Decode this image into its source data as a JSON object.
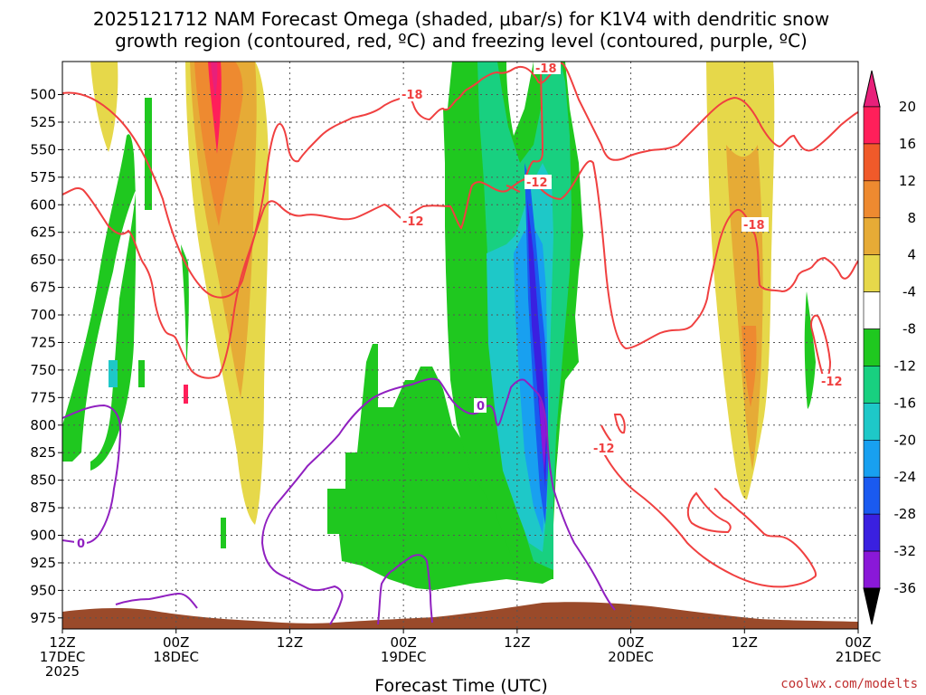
{
  "title_line1": "2025121712 NAM Forecast Omega (shaded, μbar/s) for K1V4 with dendritic snow",
  "title_line2": "growth region (contoured, red, ºC) and freezing level (contoured, purple, ºC)",
  "credit": "coolwx.com/modelts",
  "colors": {
    "temp_contour": "#f04040",
    "freezing_contour": "#9020c0",
    "terrain": "#9a4a2a",
    "grid": "#555555"
  },
  "chart_data": {
    "type": "heatmap",
    "xlabel": "Forecast Time (UTC)",
    "x_ticks": [
      {
        "hour": 0,
        "lines": [
          "12Z",
          "17DEC",
          "2025"
        ]
      },
      {
        "hour": 12,
        "lines": [
          "00Z",
          "18DEC"
        ]
      },
      {
        "hour": 24,
        "lines": [
          "12Z"
        ]
      },
      {
        "hour": 36,
        "lines": [
          "00Z",
          "19DEC"
        ]
      },
      {
        "hour": 48,
        "lines": [
          "12Z"
        ]
      },
      {
        "hour": 60,
        "lines": [
          "00Z",
          "20DEC"
        ]
      },
      {
        "hour": 72,
        "lines": [
          "12Z"
        ]
      },
      {
        "hour": 84,
        "lines": [
          "00Z",
          "21DEC"
        ]
      }
    ],
    "xlim_hours": [
      0,
      84
    ],
    "y_ticks": [
      500,
      525,
      550,
      575,
      600,
      625,
      650,
      675,
      700,
      725,
      750,
      775,
      800,
      825,
      850,
      875,
      900,
      925,
      950,
      975
    ],
    "ylim_hpa": [
      470,
      985
    ],
    "y_reversed": true,
    "grid": true,
    "colorbar": {
      "unit": "μbar/s",
      "labels": [
        20,
        16,
        12,
        8,
        4,
        -4,
        -8,
        -12,
        -16,
        -20,
        -24,
        -28,
        -32,
        -36
      ],
      "colors": [
        "#ff1f5a",
        "#f05a2a",
        "#ee8a30",
        "#e6ab36",
        "#e6d84a",
        "#ffffff",
        "#1fc81f",
        "#18d080",
        "#1ec8c8",
        "#18a0f0",
        "#1a5af0",
        "#3a20e0",
        "#8a18d8",
        "#aaaaaa"
      ],
      "top_extension_color": "#e8207a",
      "bottom_extension_color": "#000000"
    },
    "omega_regions": [
      {
        "label": "ascent core 1",
        "hours": [
          13.5,
          22.5
        ],
        "p_top": 470,
        "p_bottom": 870,
        "peak_value": 20
      },
      {
        "label": "ascent core 2",
        "hours": [
          71,
          79
        ],
        "p_top": 470,
        "p_bottom": 850,
        "peak_value": 10
      },
      {
        "label": "ascent weak",
        "hours": [
          0,
          5
        ],
        "p_top": 480,
        "p_bottom": 515,
        "peak_value": 5
      },
      {
        "label": "descent core",
        "hours": [
          40.5,
          54.5
        ],
        "p_top": 470,
        "p_bottom": 935,
        "peak_value": -28
      },
      {
        "label": "descent low level",
        "hours": [
          28,
          42
        ],
        "p_top": 710,
        "p_bottom": 935,
        "peak_value": -6
      },
      {
        "label": "descent left",
        "hours": [
          0,
          8
        ],
        "p_top": 560,
        "p_bottom": 800,
        "peak_value": -6
      }
    ],
    "temp_contour_labels": [
      "-18",
      "-12",
      "-18",
      "-12",
      "-18",
      "-12",
      "-12"
    ],
    "freezing_contour_label": "0"
  }
}
